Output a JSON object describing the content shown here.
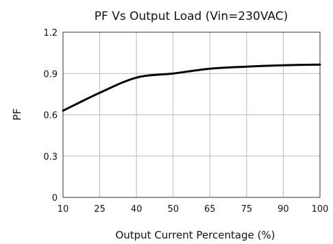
{
  "chart_data": {
    "type": "line",
    "title": "PF Vs Output Load (Vin=230VAC)",
    "xlabel": "Output Current Percentage (%)",
    "ylabel": "PF",
    "x_ticks": [
      "10",
      "25",
      "40",
      "50",
      "65",
      "75",
      "90",
      "100"
    ],
    "y_ticks": [
      "0",
      "0.3",
      "0.6",
      "0.9",
      "1.2"
    ],
    "ylim": [
      0,
      1.2
    ],
    "grid": true,
    "series": [
      {
        "values": [
          0.63,
          0.76,
          0.87,
          0.9,
          0.935,
          0.95,
          0.96,
          0.965
        ],
        "color": "#000000"
      }
    ]
  }
}
